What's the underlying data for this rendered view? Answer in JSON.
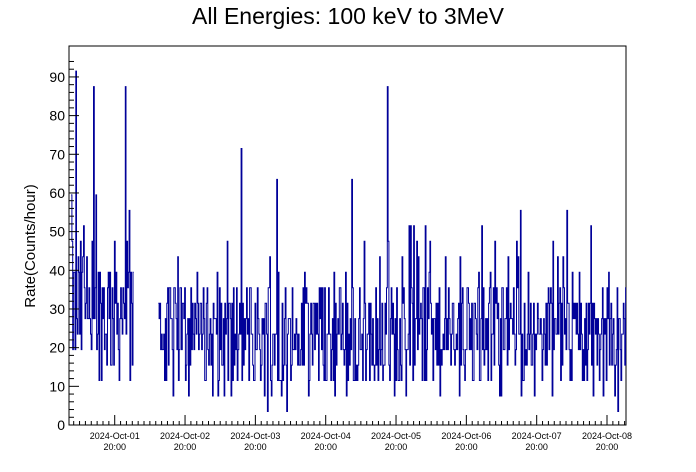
{
  "chart_data": {
    "type": "line",
    "title": "All Energies:  100 keV to 3MeV",
    "ylabel": "Rate(Counts/hour)",
    "xlabel": "",
    "ylim": [
      0,
      98
    ],
    "yticks": [
      0,
      10,
      20,
      30,
      40,
      50,
      60,
      70,
      80,
      90
    ],
    "xticks": [
      {
        "line1": "2024-Oct-01",
        "line2": "20:00"
      },
      {
        "line1": "2024-Oct-02",
        "line2": "20:00"
      },
      {
        "line1": "2024-Oct-03",
        "line2": "20:00"
      },
      {
        "line1": "2024-Oct-04",
        "line2": "20:00"
      },
      {
        "line1": "2024-Oct-05",
        "line2": "20:00"
      },
      {
        "line1": "2024-Oct-06",
        "line2": "20:00"
      },
      {
        "line1": "2024-Oct-07",
        "line2": "20:00"
      },
      {
        "line1": "2024-Oct-08",
        "line2": "20:00"
      }
    ],
    "xrange_days": [
      -0.65,
      7.27
    ],
    "series_color": "#000099",
    "gap_days": [
      0.27,
      0.62
    ],
    "segments": [
      {
        "name": "",
        "start_day": -0.62,
        "end_day": 0.27,
        "level": 30,
        "spread": 18,
        "peak": 90
      },
      {
        "name": "",
        "start_day": 0.62,
        "end_day": 7.27,
        "level": 23,
        "spread": 14,
        "peak": 86
      }
    ],
    "peaks": [
      {
        "day": -0.3,
        "value": 86
      },
      {
        "day": 0.15,
        "value": 86
      },
      {
        "day": 3.88,
        "value": 86
      },
      {
        "day": -0.55,
        "value": 90
      }
    ],
    "grid": false,
    "legend": "none"
  }
}
